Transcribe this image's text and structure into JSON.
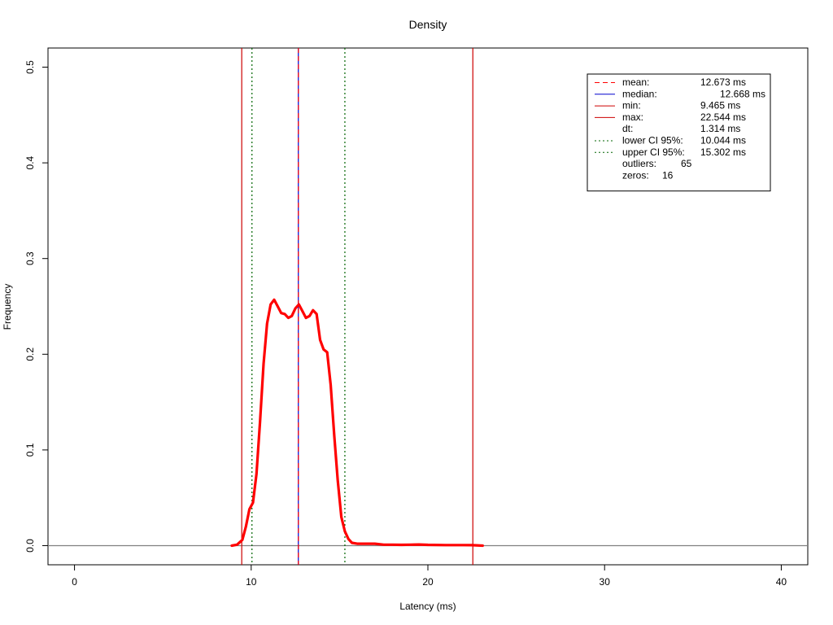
{
  "chart_data": {
    "type": "line",
    "title": "Density",
    "xlabel": "Latency (ms)",
    "ylabel": "Frequency",
    "xlim": [
      -1.5,
      41.5
    ],
    "ylim": [
      -0.02,
      0.52
    ],
    "xticks": [
      0,
      10,
      20,
      30,
      40
    ],
    "xtick_labels": [
      "0",
      "10",
      "20",
      "30",
      "40"
    ],
    "yticks": [
      0.0,
      0.1,
      0.2,
      0.3,
      0.4,
      0.5
    ],
    "ytick_labels": [
      "0.0",
      "0.1",
      "0.2",
      "0.3",
      "0.4",
      "0.5"
    ],
    "grid": false,
    "colors": {
      "density": "#ff0000",
      "mean": "#ff0000",
      "median": "#0000cd",
      "minmax": "#cd0000",
      "ci": "#006400",
      "baseline": "#808080"
    },
    "series": [
      {
        "values_x": [
          8.9,
          9.2,
          9.5,
          9.7,
          9.9,
          10.1,
          10.3,
          10.5,
          10.7,
          10.9,
          11.1,
          11.3,
          11.5,
          11.7,
          11.9,
          12.1,
          12.3,
          12.5,
          12.7,
          12.9,
          13.1,
          13.3,
          13.5,
          13.7,
          13.9,
          14.1,
          14.3,
          14.5,
          14.7,
          14.9,
          15.1,
          15.3,
          15.5,
          15.7,
          16.0,
          16.3,
          16.6,
          17.0,
          17.5,
          18.0,
          18.5,
          19.0,
          19.5,
          20.0,
          21.0,
          22.0,
          22.5,
          23.1
        ],
        "values_y": [
          0.0,
          0.001,
          0.006,
          0.02,
          0.038,
          0.045,
          0.075,
          0.13,
          0.19,
          0.232,
          0.252,
          0.257,
          0.25,
          0.243,
          0.242,
          0.238,
          0.24,
          0.248,
          0.252,
          0.245,
          0.238,
          0.24,
          0.246,
          0.242,
          0.215,
          0.205,
          0.202,
          0.168,
          0.115,
          0.068,
          0.03,
          0.015,
          0.007,
          0.003,
          0.002,
          0.002,
          0.002,
          0.002,
          0.001,
          0.001,
          0.0008,
          0.001,
          0.0012,
          0.0008,
          0.0006,
          0.0006,
          0.0005,
          0.0
        ]
      }
    ],
    "vlines": [
      {
        "name": "min",
        "x": 9.465,
        "style": "solid",
        "color": "#cd0000"
      },
      {
        "name": "lower-ci",
        "x": 10.044,
        "style": "dotted",
        "color": "#006400"
      },
      {
        "name": "median",
        "x": 12.668,
        "style": "solid",
        "color": "#0000cd"
      },
      {
        "name": "mean",
        "x": 12.673,
        "style": "dashed",
        "color": "#ff0000"
      },
      {
        "name": "upper-ci",
        "x": 15.302,
        "style": "dotted",
        "color": "#006400"
      },
      {
        "name": "max",
        "x": 22.544,
        "style": "solid",
        "color": "#cd0000"
      }
    ],
    "legend": {
      "position": "top-right",
      "entries": [
        {
          "label": "mean:",
          "value": "12.673 ms",
          "line": "dashed",
          "color": "#ff0000"
        },
        {
          "label": "median:",
          "value": "12.668 ms",
          "line": "solid",
          "color": "#0000cd"
        },
        {
          "label": "min:",
          "value": "9.465 ms",
          "line": "solid",
          "color": "#cd0000"
        },
        {
          "label": "max:",
          "value": "22.544 ms",
          "line": "solid",
          "color": "#cd0000"
        },
        {
          "label": "dt:",
          "value": "1.314 ms",
          "line": "none",
          "color": ""
        },
        {
          "label": "lower CI 95%:",
          "value": "10.044 ms",
          "line": "dotted",
          "color": "#006400"
        },
        {
          "label": "upper CI 95%:",
          "value": "15.302 ms",
          "line": "dotted",
          "color": "#006400"
        },
        {
          "label": "outliers:",
          "value": "65",
          "line": "none",
          "color": ""
        },
        {
          "label": "zeros:",
          "value": "16",
          "line": "none",
          "color": ""
        }
      ]
    }
  }
}
